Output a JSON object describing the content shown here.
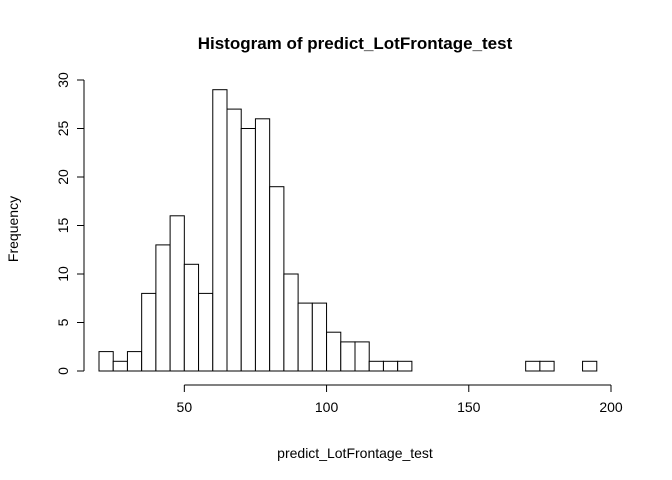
{
  "chart_data": {
    "type": "bar",
    "title": "Histogram of predict_LotFrontage_test",
    "xlabel": "predict_LotFrontage_test",
    "ylabel": "Frequency",
    "bin_width": 5,
    "bins": [
      {
        "start": 20,
        "end": 25,
        "count": 2
      },
      {
        "start": 25,
        "end": 30,
        "count": 1
      },
      {
        "start": 30,
        "end": 35,
        "count": 2
      },
      {
        "start": 35,
        "end": 40,
        "count": 8
      },
      {
        "start": 40,
        "end": 45,
        "count": 13
      },
      {
        "start": 45,
        "end": 50,
        "count": 16
      },
      {
        "start": 50,
        "end": 55,
        "count": 11
      },
      {
        "start": 55,
        "end": 60,
        "count": 8
      },
      {
        "start": 60,
        "end": 65,
        "count": 29
      },
      {
        "start": 65,
        "end": 70,
        "count": 27
      },
      {
        "start": 70,
        "end": 75,
        "count": 25
      },
      {
        "start": 75,
        "end": 80,
        "count": 26
      },
      {
        "start": 80,
        "end": 85,
        "count": 19
      },
      {
        "start": 85,
        "end": 90,
        "count": 10
      },
      {
        "start": 90,
        "end": 95,
        "count": 7
      },
      {
        "start": 95,
        "end": 100,
        "count": 7
      },
      {
        "start": 100,
        "end": 105,
        "count": 4
      },
      {
        "start": 105,
        "end": 110,
        "count": 3
      },
      {
        "start": 110,
        "end": 115,
        "count": 3
      },
      {
        "start": 115,
        "end": 120,
        "count": 1
      },
      {
        "start": 120,
        "end": 125,
        "count": 1
      },
      {
        "start": 125,
        "end": 130,
        "count": 1
      },
      {
        "start": 130,
        "end": 135,
        "count": 0
      },
      {
        "start": 135,
        "end": 140,
        "count": 0
      },
      {
        "start": 140,
        "end": 145,
        "count": 0
      },
      {
        "start": 145,
        "end": 150,
        "count": 0
      },
      {
        "start": 150,
        "end": 155,
        "count": 0
      },
      {
        "start": 155,
        "end": 160,
        "count": 0
      },
      {
        "start": 160,
        "end": 165,
        "count": 0
      },
      {
        "start": 165,
        "end": 170,
        "count": 0
      },
      {
        "start": 170,
        "end": 175,
        "count": 1
      },
      {
        "start": 175,
        "end": 180,
        "count": 1
      },
      {
        "start": 180,
        "end": 185,
        "count": 0
      },
      {
        "start": 185,
        "end": 190,
        "count": 0
      },
      {
        "start": 190,
        "end": 195,
        "count": 1
      }
    ],
    "xlim": [
      20,
      200
    ],
    "ylim": [
      0,
      30
    ],
    "x_ticks": [
      50,
      100,
      150,
      200
    ],
    "y_ticks": [
      0,
      5,
      10,
      15,
      20,
      25,
      30
    ],
    "grid": false,
    "legend": "none",
    "bar_fill": "#ffffff",
    "bar_stroke": "#000000"
  }
}
